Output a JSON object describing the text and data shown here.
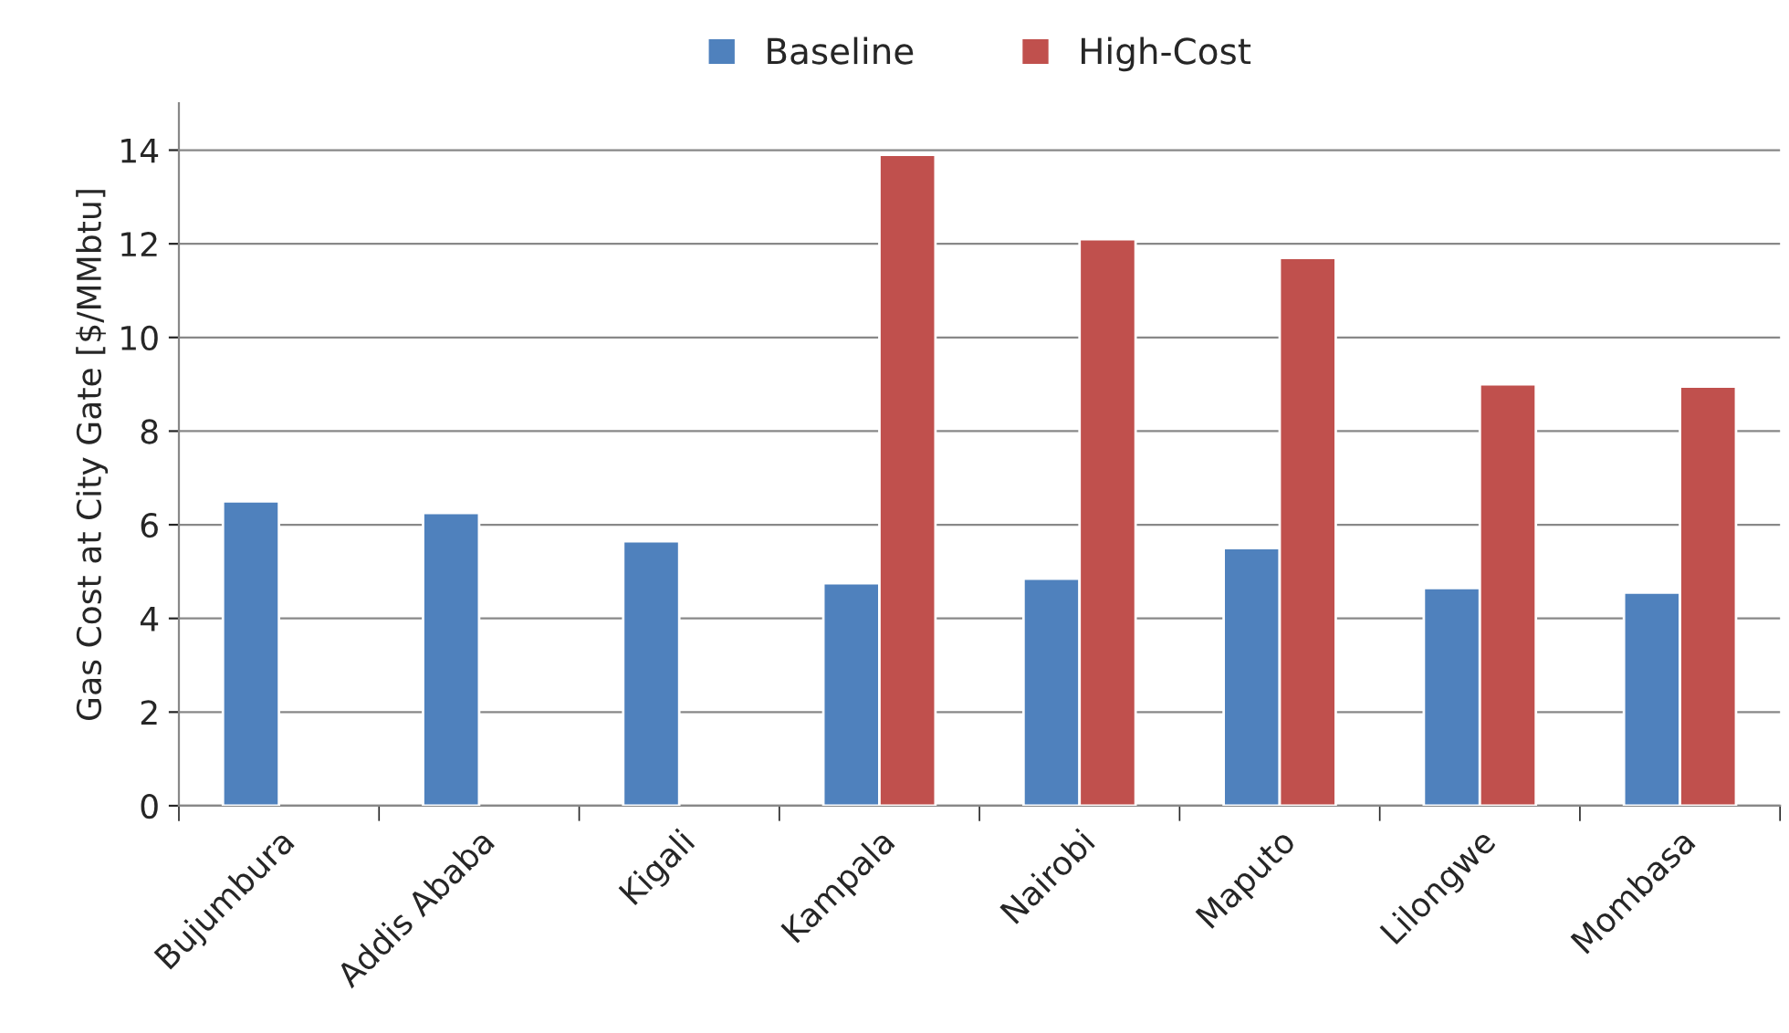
{
  "chart_data": {
    "type": "bar",
    "ylabel": "Gas Cost at City Gate [$/MMbtu]",
    "categories": [
      "Bujumbura",
      "Addis Ababa",
      "Kigali",
      "Kampala",
      "Nairobi",
      "Maputo",
      "Lilongwe",
      "Mombasa"
    ],
    "series": [
      {
        "name": "Baseline",
        "color": "#4f81bd",
        "values": [
          6.5,
          6.25,
          5.65,
          4.75,
          4.85,
          5.5,
          4.65,
          4.55
        ]
      },
      {
        "name": "High-Cost",
        "color": "#c0504d",
        "values": [
          null,
          null,
          null,
          13.9,
          12.1,
          11.7,
          9.0,
          8.95
        ]
      }
    ],
    "ylim": [
      0,
      15
    ],
    "yticks": [
      0,
      2,
      4,
      6,
      8,
      10,
      12,
      14
    ],
    "grid": "y",
    "legend": "top"
  }
}
